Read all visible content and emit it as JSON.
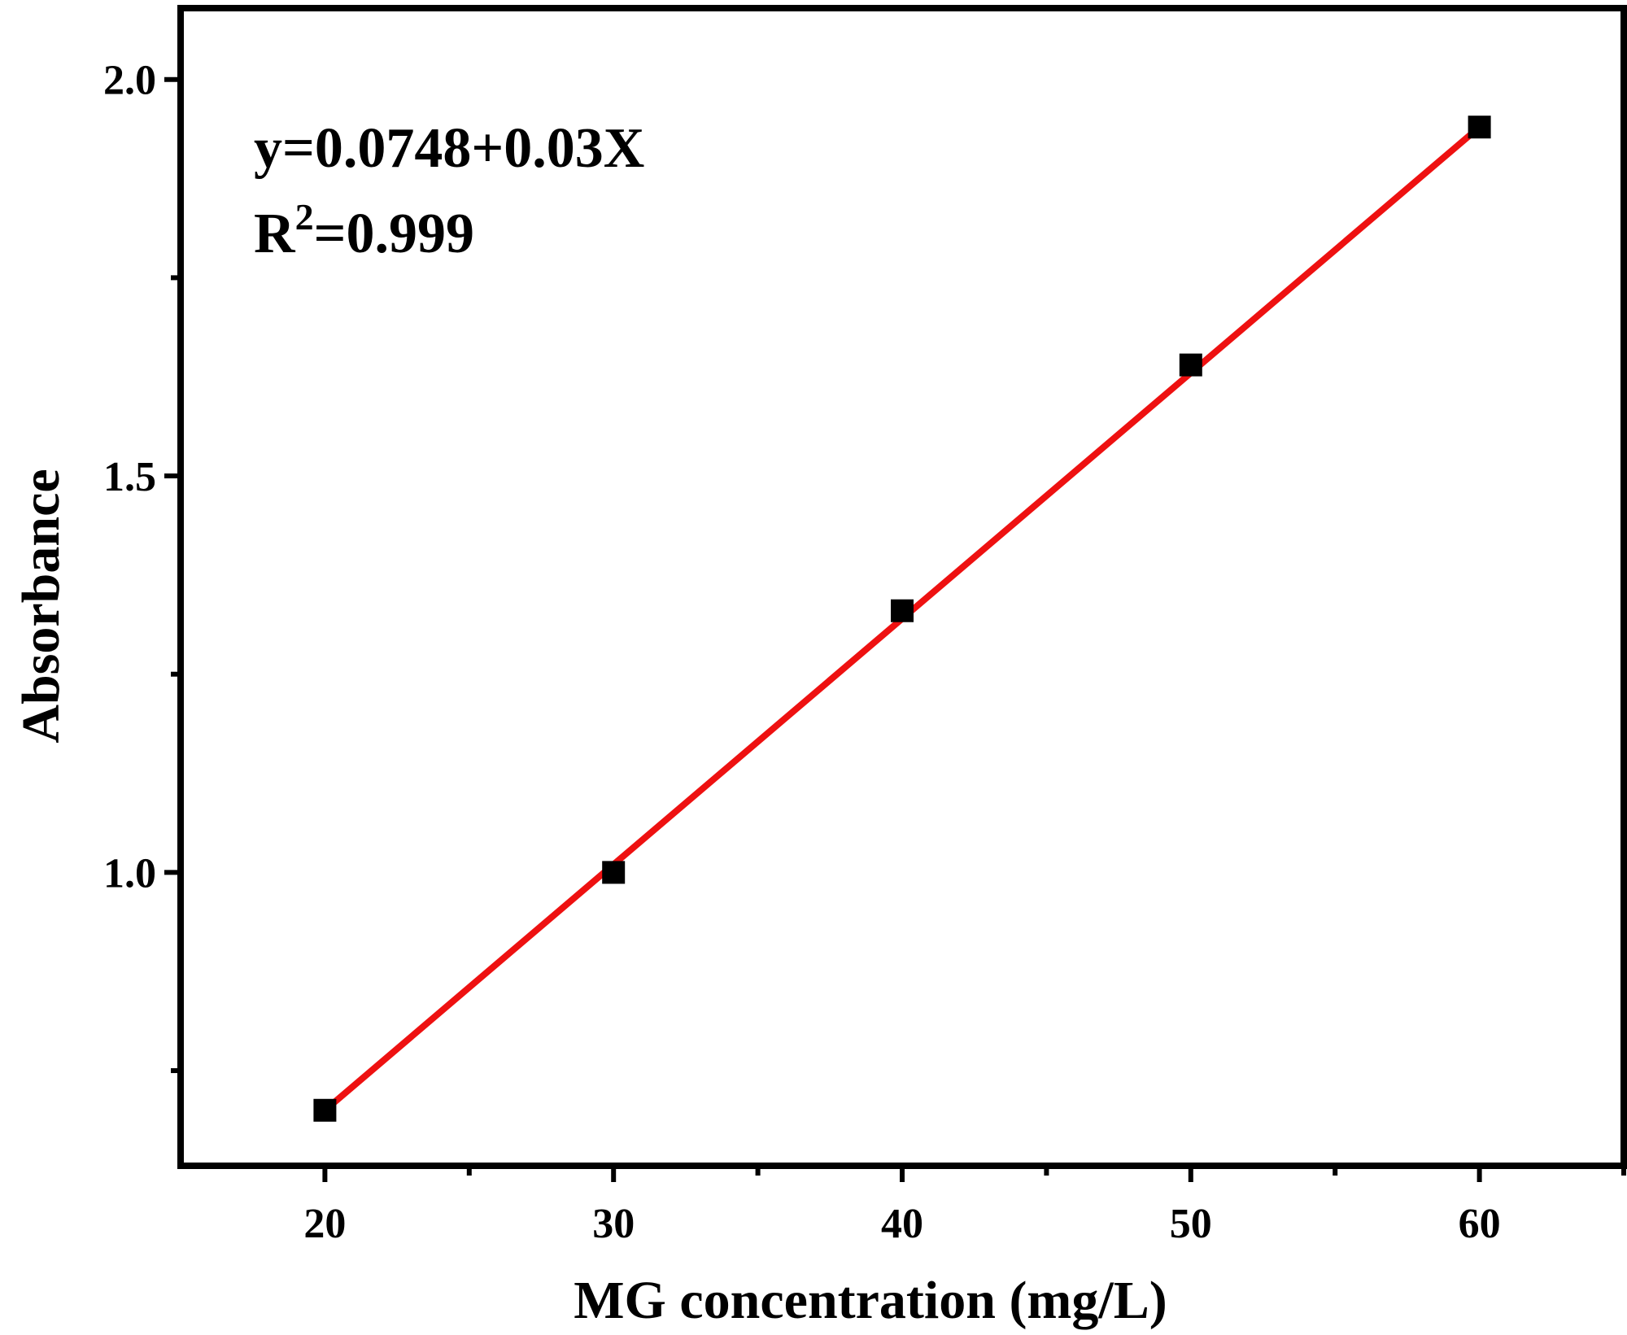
{
  "chart_data": {
    "type": "scatter",
    "xlabel": "MG concentration (mg/L)",
    "ylabel": "Absorbance",
    "xlim": [
      15,
      65
    ],
    "ylim": [
      0.63,
      2.09
    ],
    "x_ticks": [
      20,
      30,
      40,
      50,
      60
    ],
    "x_tick_labels": [
      "20",
      "30",
      "40",
      "50",
      "60"
    ],
    "x_minor_ticks": [
      25,
      35,
      45,
      55,
      65
    ],
    "y_ticks": [
      1.0,
      1.5,
      2.0
    ],
    "y_tick_labels": [
      "1.0",
      "1.5",
      "2.0"
    ],
    "y_minor_ticks": [
      0.75,
      1.25,
      1.75
    ],
    "series": [
      {
        "marker": "square",
        "color": "#000000",
        "x": [
          20,
          30,
          40,
          50,
          60
        ],
        "y": [
          0.7,
          1.0,
          1.33,
          1.64,
          1.94
        ]
      }
    ],
    "fit_line": {
      "color": "#ee1111",
      "x": [
        20,
        60
      ],
      "y": [
        0.7,
        1.94
      ]
    },
    "annotations": {
      "equation": "y=0.0748+0.03X",
      "r2_prefix": "R",
      "r2_sup": "2",
      "r2_value": "=0.999"
    },
    "grid": false,
    "legend": "none"
  }
}
